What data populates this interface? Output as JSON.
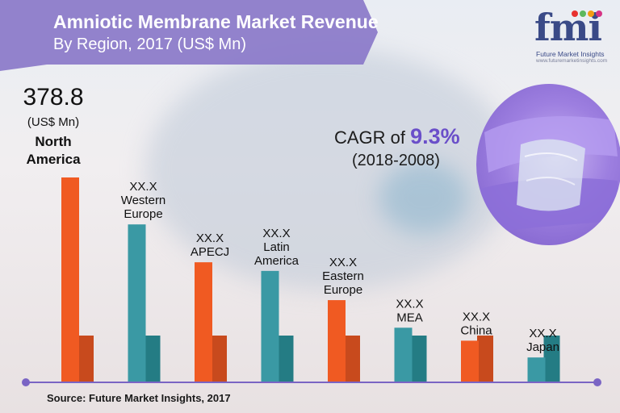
{
  "header": {
    "title_line1": "Amniotic Membrane Market  Revenue",
    "title_line2": "By Region, 2017 (US$ Mn)"
  },
  "logo": {
    "letters": "fmi",
    "name": "Future Market Insights",
    "url": "www.futuremarketinsights.com"
  },
  "callout": {
    "cagr_label": "CAGR of ",
    "cagr_value": "9.3%",
    "period": "(2018-2008)"
  },
  "source": "Source: Future Market Insights, 2017",
  "colors": {
    "banner": "#8a78c9",
    "orange": "#f05a22",
    "teal": "#3a99a4",
    "teal_dark": "#247c84",
    "orange_dark": "#c84a1d",
    "axis": "#7a64c4"
  },
  "chart_data": {
    "type": "bar",
    "title": "Amniotic Membrane Market  Revenue By Region, 2017 (US$ Mn)",
    "categories": [
      "North America",
      "Western Europe",
      "APECJ",
      "Latin America",
      "Eastern Europe",
      "MEA",
      "China",
      "Japan"
    ],
    "value_labels": [
      "378.8",
      "XX.X",
      "XX.X",
      "XX.X",
      "XX.X",
      "XX.X",
      "XX.X",
      "XX.X"
    ],
    "unit_label": "(US$ Mn)",
    "values": [
      378.8,
      292,
      222,
      206,
      152,
      101,
      77,
      46
    ],
    "bar_colors": [
      "orange",
      "teal",
      "orange",
      "teal",
      "orange",
      "teal",
      "orange",
      "teal"
    ],
    "ylim": [
      0,
      400
    ],
    "grid": false,
    "legend": "none",
    "xlabel": "",
    "ylabel": ""
  }
}
